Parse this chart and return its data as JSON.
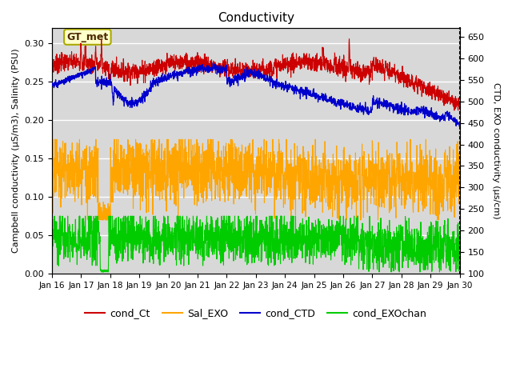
{
  "title": "Conductivity",
  "ylabel_left": "Campbell conductivity (μS/m3), Salinity (PSU)",
  "ylabel_right": "CTD, EXO conductivity (μs/cm)",
  "ylim_left": [
    0.0,
    0.32
  ],
  "ylim_right": [
    100,
    670
  ],
  "yticks_left": [
    0.0,
    0.05,
    0.1,
    0.15,
    0.2,
    0.25,
    0.3
  ],
  "yticks_right": [
    100,
    150,
    200,
    250,
    300,
    350,
    400,
    450,
    500,
    550,
    600,
    650
  ],
  "xtick_labels": [
    "Jan 16",
    "Jan 17",
    "Jan 18",
    "Jan 19",
    "Jan 20",
    "Jan 21",
    "Jan 22",
    "Jan 23",
    "Jan 24",
    "Jan 25",
    "Jan 26",
    "Jan 27",
    "Jan 28",
    "Jan 29",
    "Jan 30"
  ],
  "n_days": 14,
  "colors": {
    "cond_Ct": "#cc0000",
    "Sal_EXO": "#ffa500",
    "cond_CTD": "#0000cc",
    "cond_EXOchan": "#00cc00"
  },
  "legend_labels": [
    "cond_Ct",
    "Sal_EXO",
    "cond_CTD",
    "cond_EXOchan"
  ],
  "annotation_text": "GT_met",
  "bg_color": "#e8e8e8",
  "grid_color": "#ffffff",
  "band1_color": "#d8d8d8",
  "band2_color": "#d8d8d8"
}
